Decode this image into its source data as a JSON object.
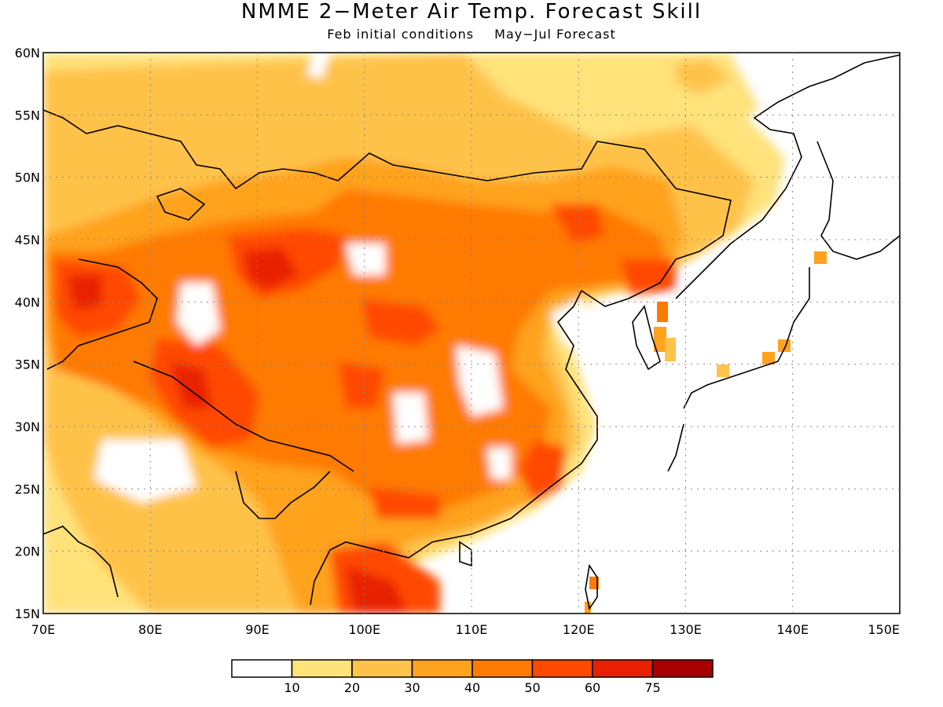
{
  "title": "NMME 2−Meter Air Temp. Forecast Skill",
  "subtitle": {
    "initial": "Feb initial conditions",
    "forecast": "May−Jul Forecast"
  },
  "map": {
    "lon_range": [
      70,
      150
    ],
    "lat_range": [
      15,
      60
    ],
    "lat_labels": [
      "15N",
      "20N",
      "25N",
      "30N",
      "35N",
      "40N",
      "45N",
      "50N",
      "55N",
      "60N"
    ],
    "lon_labels": [
      "70E",
      "80E",
      "90E",
      "100E",
      "110E",
      "120E",
      "130E",
      "140E",
      "150E"
    ],
    "gridlines": "dotted"
  },
  "legend": {
    "boundaries": [
      "10",
      "20",
      "30",
      "40",
      "50",
      "60",
      "75"
    ],
    "colors": [
      "#ffffff",
      "#ffe27a",
      "#ffc24a",
      "#ffa21e",
      "#ff7a00",
      "#ff4a00",
      "#e82000",
      "#a80000"
    ]
  }
}
